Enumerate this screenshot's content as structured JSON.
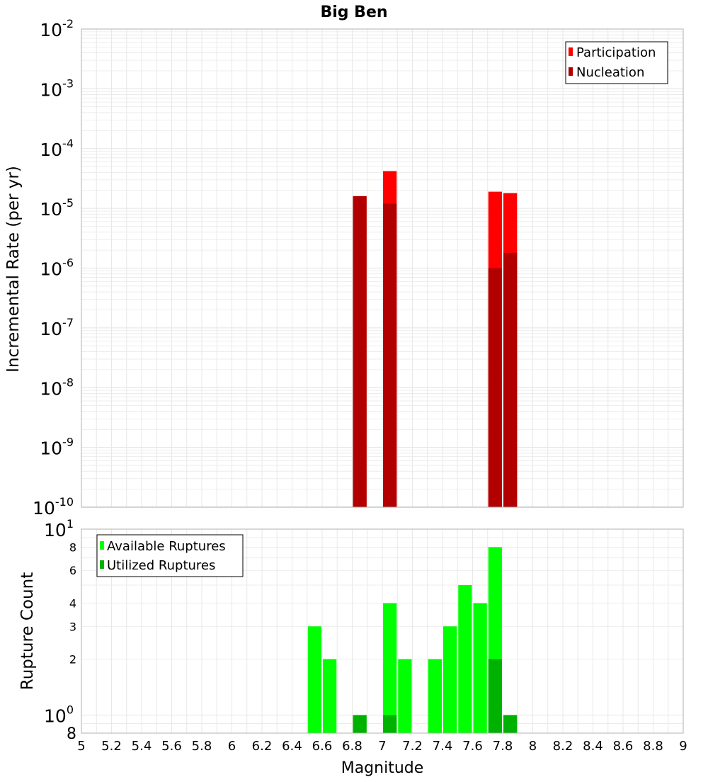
{
  "title": "Big Ben",
  "xlabel": "Magnitude",
  "colors": {
    "participation": "#ff0000",
    "nucleation": "#b20000",
    "available": "#00ff00",
    "utilized": "#00b200",
    "grid": "#e8e8e8",
    "frame": "#b0b0b0"
  },
  "chart_data": [
    {
      "type": "bar",
      "name": "rate-panel",
      "ylabel": "Incremental Rate (per yr)",
      "yscale": "log",
      "ylim": [
        1e-10,
        0.01
      ],
      "xlim": [
        5,
        9
      ],
      "y_ticks": [
        {
          "base": "10",
          "exp": "-2",
          "value": 0.01
        },
        {
          "base": "10",
          "exp": "-3",
          "value": 0.001
        },
        {
          "base": "10",
          "exp": "-4",
          "value": 0.0001
        },
        {
          "base": "10",
          "exp": "-5",
          "value": 1e-05
        },
        {
          "base": "10",
          "exp": "-6",
          "value": 1e-06
        },
        {
          "base": "10",
          "exp": "-7",
          "value": 1e-07
        },
        {
          "base": "10",
          "exp": "-8",
          "value": 1e-08
        },
        {
          "base": "10",
          "exp": "-9",
          "value": 1e-09
        },
        {
          "base": "10",
          "exp": "-10",
          "value": 1e-10
        }
      ],
      "legend": {
        "position": "top-right",
        "entries": [
          "Participation",
          "Nucleation"
        ]
      },
      "series": [
        {
          "name": "Participation",
          "x": [
            6.85,
            7.05,
            7.75,
            7.85
          ],
          "values": [
            1.6e-05,
            4.2e-05,
            1.9e-05,
            1.8e-05
          ]
        },
        {
          "name": "Nucleation",
          "x": [
            6.85,
            7.05,
            7.75,
            7.85
          ],
          "values": [
            1.6e-05,
            1.2e-05,
            1e-06,
            1.8e-06
          ]
        }
      ]
    },
    {
      "type": "bar",
      "name": "count-panel",
      "ylabel": "Rupture Count",
      "yscale": "log",
      "ylim": [
        0.8,
        10
      ],
      "xlim": [
        5,
        9
      ],
      "y_ticks": [
        {
          "label": "8",
          "value": 8
        },
        {
          "label": "6",
          "value": 6
        },
        {
          "label": "4",
          "value": 4
        },
        {
          "label": "3",
          "value": 3
        },
        {
          "label": "2",
          "value": 2
        }
      ],
      "y_major_ticks": [
        {
          "base": "10",
          "exp": "1",
          "value": 10
        },
        {
          "base": "10",
          "exp": "0",
          "value": 1
        }
      ],
      "y_bottom_label": "8",
      "legend": {
        "position": "top-left",
        "entries": [
          "Available Ruptures",
          "Utilized Ruptures"
        ]
      },
      "series": [
        {
          "name": "Available Ruptures",
          "x": [
            6.55,
            6.65,
            6.85,
            7.05,
            7.15,
            7.35,
            7.45,
            7.55,
            7.65,
            7.75,
            7.85
          ],
          "values": [
            3,
            2,
            1,
            4,
            2,
            2,
            3,
            5,
            4,
            8,
            1
          ]
        },
        {
          "name": "Utilized Ruptures",
          "x": [
            6.85,
            7.05,
            7.75,
            7.85
          ],
          "values": [
            1,
            1,
            2,
            1
          ]
        }
      ]
    }
  ],
  "x_ticks": [
    "5",
    "5.2",
    "5.4",
    "5.6",
    "5.8",
    "6",
    "6.2",
    "6.4",
    "6.6",
    "6.8",
    "7",
    "7.2",
    "7.4",
    "7.6",
    "7.8",
    "8",
    "8.2",
    "8.4",
    "8.6",
    "8.8",
    "9"
  ]
}
